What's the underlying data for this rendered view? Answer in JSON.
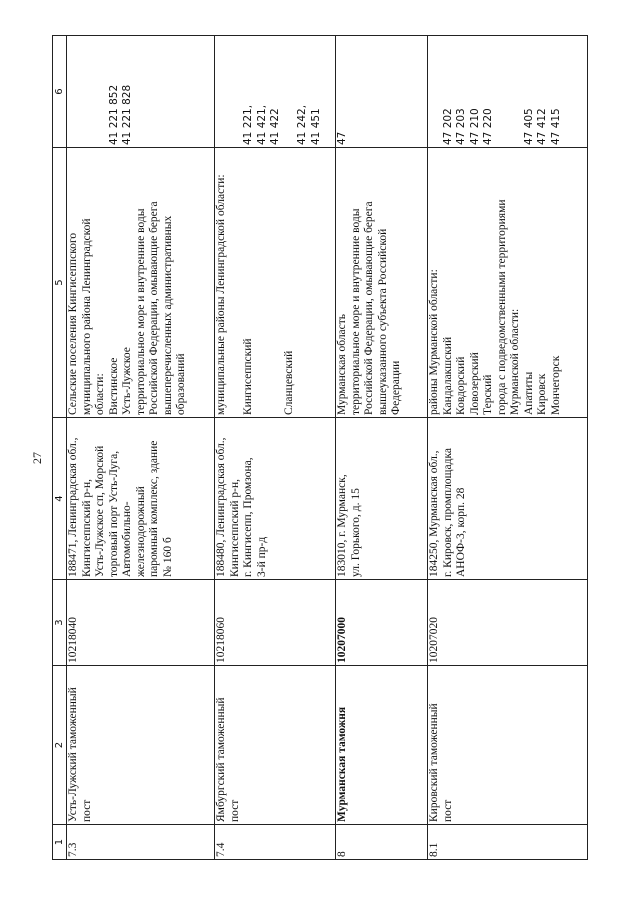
{
  "page_number": "27",
  "columns": [
    "1",
    "2",
    "3",
    "4",
    "5",
    "6"
  ],
  "rows": [
    {
      "no": "7.3",
      "name": [
        "Усть-Лужский таможенный",
        "пост"
      ],
      "code": "10218040",
      "address": [
        "188471, Ленинградская обл.,",
        "Кингисеппский р-н,",
        "Усть-Лужское сп, Морской",
        "торговый порт Усть-Луга,",
        "Автомобильно-",
        "железнодорожный",
        "паромный комплекс, здание",
        "№ 160 б"
      ],
      "territory": [
        "Сельские поселения Кингисеппского",
        "муниципального района Ленинградской",
        "области:",
        "Вистинское",
        "Усть-Лужское",
        "территориальное море и внутренние воды",
        "Российской Федерации, омывающие берега",
        "вышеперечисленных административных",
        "образований"
      ],
      "okato": [
        "",
        "",
        "",
        "41 221 852",
        "41 221 828"
      ],
      "bold": false
    },
    {
      "no": "7.4",
      "name": [
        "Ямбургский таможенный",
        "пост"
      ],
      "code": "10218060",
      "address": [
        "188480, Ленинградская обл.,",
        "Кингисеппский р-н,",
        "г. Кингисепп, Промзона,",
        "3-й пр-д"
      ],
      "territory": [
        "муниципальные районы Ленинградской области:",
        "",
        "Кингисеппский",
        "",
        "",
        "Сланцевский"
      ],
      "okato": [
        "",
        "",
        "41 221,",
        "41 421,",
        "41 422",
        "",
        "41 242,",
        "41 451"
      ],
      "bold": false
    },
    {
      "no": "8",
      "name": [
        "Мурманская таможня"
      ],
      "code": "10207000",
      "address": [
        "183010, г. Мурманск,",
        "ул. Горького, д. 15"
      ],
      "territory": [
        "Мурманская область",
        "территориальное море и внутренние воды",
        "Российской Федерации, омывающие берега",
        "вышеуказанного субъекта Российской",
        "Федерации"
      ],
      "okato": [
        "47"
      ],
      "bold": true
    },
    {
      "no": "8.1",
      "name": [
        "Кировский таможенный",
        "пост"
      ],
      "code": "10207020",
      "address": [
        "184250, Мурманская обл.,",
        "г. Кировск, промплощадка",
        "АНОФ-3, корп. 28"
      ],
      "territory": [
        "районы Мурманской области:",
        "Кандалакшский",
        "Ковдорский",
        "Ловозерский",
        "Терский",
        "города с подведомственными территориями",
        "Мурманской области:",
        "Апатиты",
        "Кировск",
        "Мончегорск"
      ],
      "okato": [
        "",
        "47 202",
        "47 203",
        "47 210",
        "47 220",
        "",
        "",
        "47 405",
        "47 412",
        "47 415"
      ],
      "bold": false
    }
  ]
}
